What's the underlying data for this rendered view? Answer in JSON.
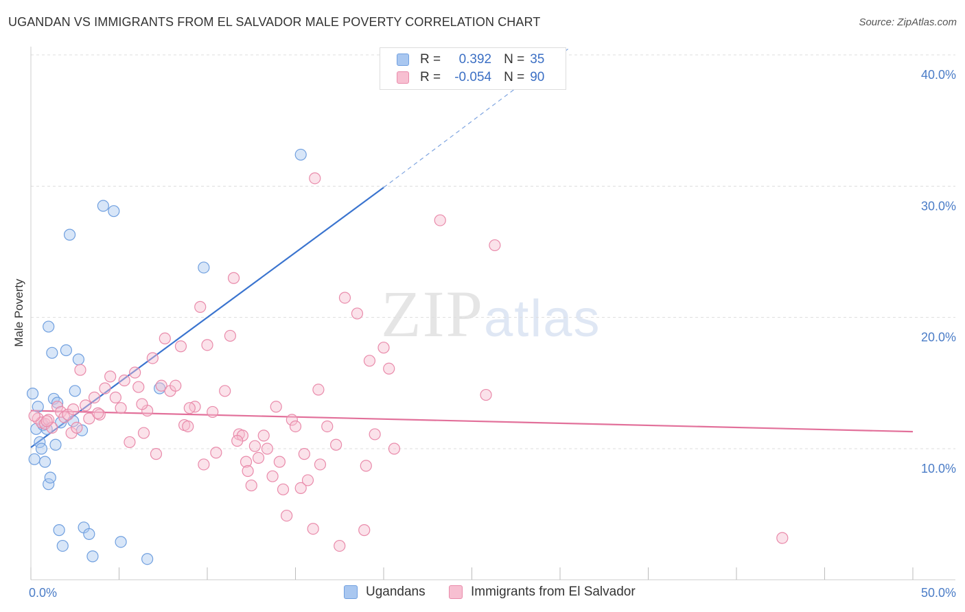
{
  "title": "UGANDAN VS IMMIGRANTS FROM EL SALVADOR MALE POVERTY CORRELATION CHART",
  "source": "Source: ZipAtlas.com",
  "watermark": {
    "zip": "ZIP",
    "atlas": "atlas"
  },
  "legend_top": [
    {
      "r_label": "R =",
      "r_value": "0.392",
      "n_label": "N =",
      "n_value": "35",
      "color": "#a9c7f0",
      "border": "#6f9fdf"
    },
    {
      "r_label": "R =",
      "r_value": "-0.054",
      "n_label": "N =",
      "n_value": "90",
      "color": "#f7bfd1",
      "border": "#e98aaa"
    }
  ],
  "legend_bottom": [
    {
      "label": "Ugandans",
      "color": "#a9c7f0",
      "border": "#6f9fdf"
    },
    {
      "label": "Immigrants from El Salvador",
      "color": "#f7bfd1",
      "border": "#e98aaa"
    }
  ],
  "chart_data": {
    "type": "scatter",
    "title": "UGANDAN VS IMMIGRANTS FROM EL SALVADOR MALE POVERTY CORRELATION CHART",
    "xlabel": "",
    "ylabel": "Male Poverty",
    "xlim": [
      0,
      50
    ],
    "ylim": [
      0,
      40
    ],
    "x_tick_labels": [
      "0.0%",
      "50.0%"
    ],
    "y_ticks": [
      10,
      20,
      30,
      40
    ],
    "y_tick_labels": [
      "10.0%",
      "20.0%",
      "30.0%",
      "40.0%"
    ],
    "grid": true,
    "legend_position": "top-center",
    "series": [
      {
        "name": "Ugandans",
        "color": "#6f9fdf",
        "fill": "#a9c7f0",
        "points": [
          [
            0.1,
            14.2
          ],
          [
            0.3,
            11.5
          ],
          [
            0.4,
            13.2
          ],
          [
            0.5,
            10.5
          ],
          [
            0.2,
            9.2
          ],
          [
            0.6,
            10.0
          ],
          [
            0.7,
            11.8
          ],
          [
            0.8,
            9.0
          ],
          [
            0.9,
            11.5
          ],
          [
            1.0,
            7.3
          ],
          [
            1.1,
            7.8
          ],
          [
            1.2,
            17.3
          ],
          [
            1.0,
            19.3
          ],
          [
            1.3,
            13.8
          ],
          [
            1.4,
            10.3
          ],
          [
            1.5,
            13.5
          ],
          [
            1.6,
            3.8
          ],
          [
            1.7,
            12.0
          ],
          [
            1.8,
            2.6
          ],
          [
            2.0,
            17.5
          ],
          [
            2.7,
            16.8
          ],
          [
            2.2,
            26.3
          ],
          [
            2.5,
            14.4
          ],
          [
            2.4,
            12.1
          ],
          [
            2.9,
            11.4
          ],
          [
            3.0,
            4.0
          ],
          [
            3.3,
            3.5
          ],
          [
            3.5,
            1.8
          ],
          [
            4.1,
            28.5
          ],
          [
            4.7,
            28.1
          ],
          [
            5.1,
            2.9
          ],
          [
            6.6,
            1.6
          ],
          [
            7.3,
            14.6
          ],
          [
            9.8,
            23.8
          ],
          [
            15.3,
            32.4
          ]
        ],
        "trend": {
          "x": [
            0,
            20
          ],
          "y": [
            10.1,
            29.9
          ],
          "extended_to": [
            30.5,
            40.5
          ]
        }
      },
      {
        "name": "Immigrants from El Salvador",
        "color": "#e98aaa",
        "fill": "#f7bfd1",
        "points": [
          [
            0.4,
            12.3
          ],
          [
            0.6,
            12.0
          ],
          [
            0.8,
            11.9
          ],
          [
            1.0,
            12.2
          ],
          [
            1.2,
            11.6
          ],
          [
            1.5,
            13.2
          ],
          [
            1.7,
            12.8
          ],
          [
            1.9,
            12.4
          ],
          [
            2.1,
            12.6
          ],
          [
            2.3,
            11.2
          ],
          [
            2.6,
            11.6
          ],
          [
            2.8,
            16.0
          ],
          [
            3.1,
            13.3
          ],
          [
            3.3,
            12.3
          ],
          [
            3.6,
            13.9
          ],
          [
            3.9,
            12.6
          ],
          [
            4.2,
            14.6
          ],
          [
            4.5,
            15.5
          ],
          [
            4.8,
            13.9
          ],
          [
            5.1,
            13.1
          ],
          [
            5.3,
            15.2
          ],
          [
            5.6,
            10.5
          ],
          [
            5.9,
            15.8
          ],
          [
            6.1,
            14.7
          ],
          [
            6.4,
            11.2
          ],
          [
            6.6,
            12.9
          ],
          [
            6.9,
            16.9
          ],
          [
            7.1,
            9.6
          ],
          [
            7.4,
            14.8
          ],
          [
            7.6,
            18.4
          ],
          [
            7.9,
            14.4
          ],
          [
            8.2,
            14.8
          ],
          [
            8.5,
            17.8
          ],
          [
            8.7,
            11.8
          ],
          [
            8.9,
            11.7
          ],
          [
            9.3,
            13.2
          ],
          [
            9.6,
            20.8
          ],
          [
            9.8,
            8.8
          ],
          [
            10.0,
            17.9
          ],
          [
            10.3,
            12.8
          ],
          [
            10.5,
            9.7
          ],
          [
            11.0,
            14.4
          ],
          [
            11.3,
            18.6
          ],
          [
            11.5,
            23.0
          ],
          [
            11.8,
            11.1
          ],
          [
            12.0,
            11.0
          ],
          [
            12.2,
            9.0
          ],
          [
            12.3,
            8.3
          ],
          [
            12.5,
            7.2
          ],
          [
            12.7,
            10.2
          ],
          [
            12.9,
            9.3
          ],
          [
            13.2,
            11.0
          ],
          [
            13.4,
            10.0
          ],
          [
            13.7,
            7.9
          ],
          [
            13.9,
            13.2
          ],
          [
            14.1,
            9.0
          ],
          [
            14.3,
            6.9
          ],
          [
            14.5,
            4.9
          ],
          [
            14.8,
            12.2
          ],
          [
            15.0,
            11.7
          ],
          [
            15.3,
            7.0
          ],
          [
            15.5,
            9.6
          ],
          [
            15.7,
            7.6
          ],
          [
            16.0,
            3.9
          ],
          [
            16.1,
            30.6
          ],
          [
            16.3,
            14.5
          ],
          [
            16.4,
            8.8
          ],
          [
            16.8,
            11.7
          ],
          [
            17.3,
            10.3
          ],
          [
            17.5,
            2.6
          ],
          [
            17.8,
            21.5
          ],
          [
            18.5,
            20.3
          ],
          [
            18.9,
            3.8
          ],
          [
            19.0,
            8.7
          ],
          [
            19.2,
            16.7
          ],
          [
            19.5,
            11.1
          ],
          [
            20.0,
            17.7
          ],
          [
            20.3,
            16.1
          ],
          [
            20.6,
            10.0
          ],
          [
            23.2,
            27.4
          ],
          [
            25.8,
            14.1
          ],
          [
            26.3,
            25.5
          ],
          [
            42.6,
            3.2
          ],
          [
            0.2,
            12.5
          ],
          [
            0.9,
            12.1
          ],
          [
            3.8,
            12.7
          ],
          [
            9.0,
            13.1
          ],
          [
            11.7,
            10.6
          ],
          [
            6.3,
            13.4
          ],
          [
            2.4,
            13.0
          ]
        ],
        "trend": {
          "x": [
            0,
            50
          ],
          "y": [
            12.9,
            11.3
          ]
        }
      }
    ]
  }
}
